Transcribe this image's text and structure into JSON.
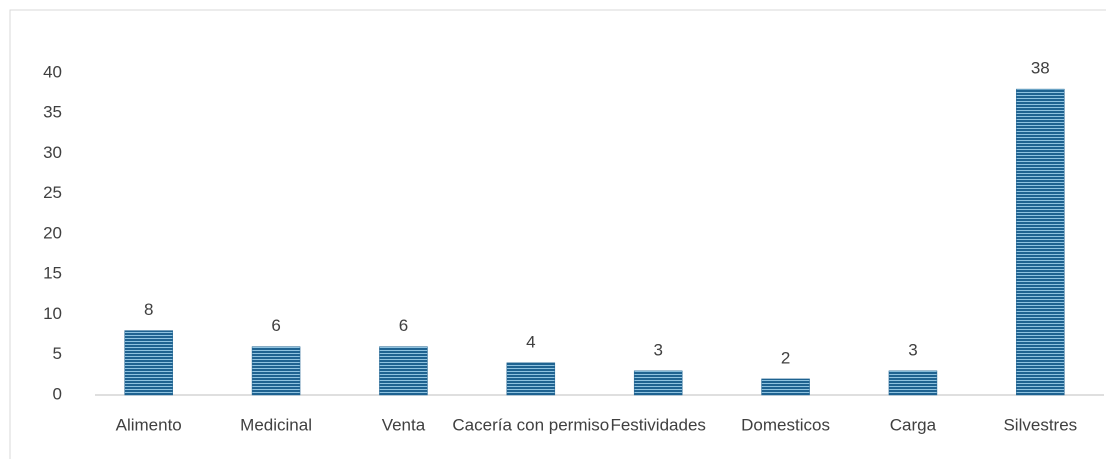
{
  "chart_data": {
    "type": "bar",
    "categories": [
      "Alimento",
      "Medicinal",
      "Venta",
      "Cacería con permiso",
      "Festividades",
      "Domesticos",
      "Carga",
      "Silvestres"
    ],
    "values": [
      8,
      6,
      6,
      4,
      3,
      2,
      3,
      38
    ],
    "color": "#1f6391",
    "ylim": [
      0,
      40
    ],
    "yticks": [
      0,
      5,
      10,
      15,
      20,
      25,
      30,
      35,
      40
    ],
    "grid": false
  }
}
